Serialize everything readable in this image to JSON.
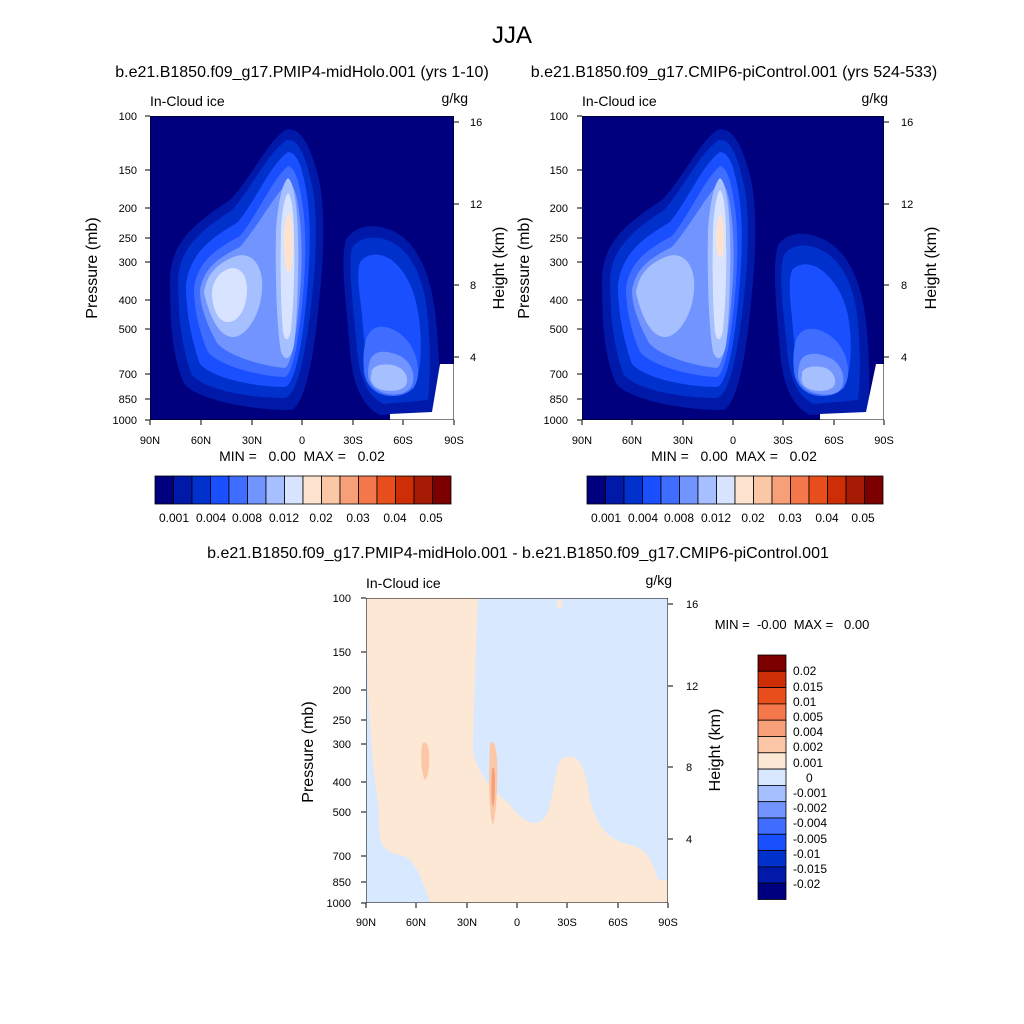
{
  "figure": {
    "title": "JJA",
    "colors": [
      "#00007e",
      "#0019a9",
      "#0031cc",
      "#1a4fff",
      "#3f6dff",
      "#7194ff",
      "#a5bfff",
      "#d8e4ff",
      "#fde3cf",
      "#fbc7a7",
      "#f79f78",
      "#f4784b",
      "#e94f1c",
      "#cc2f06",
      "#a51b05",
      "#7d0000"
    ],
    "diff_colors": [
      "#00007e",
      "#0019a9",
      "#0031cc",
      "#1a4fff",
      "#3f6dff",
      "#7194ff",
      "#a5bfff",
      "#d8e8ff",
      "#fde8d6",
      "#fbc7a7",
      "#f79f78",
      "#f4784b",
      "#e94f1c",
      "#cc2f06",
      "#7d0000"
    ]
  },
  "chart_data": [
    {
      "type": "heatmap",
      "title": "b.e21.B1850.f09_g17.PMIP4-midHolo.001 (yrs 1-10)",
      "left_label": "In-Cloud ice",
      "units": "g/kg",
      "ylabel": "Pressure (mb)",
      "y2label": "Height (km)",
      "x_ticks": [
        "90N",
        "60N",
        "30N",
        "0",
        "30S",
        "60S",
        "90S"
      ],
      "y_ticks": [
        "100",
        "150",
        "200",
        "250",
        "300",
        "400",
        "500",
        "700",
        "850",
        "1000"
      ],
      "y2_ticks": [
        "16",
        "12",
        "8",
        "4"
      ],
      "stats": "MIN =   0.00  MAX =   0.02",
      "colorbar_labels": [
        "0.001",
        "0.004",
        "0.008",
        "0.012",
        "0.02",
        "0.03",
        "0.04",
        "0.05"
      ]
    },
    {
      "type": "heatmap",
      "title": "b.e21.B1850.f09_g17.CMIP6-piControl.001 (yrs 524-533)",
      "left_label": "In-Cloud ice",
      "units": "g/kg",
      "ylabel": "Pressure (mb)",
      "y2label": "Height (km)",
      "x_ticks": [
        "90N",
        "60N",
        "30N",
        "0",
        "30S",
        "60S",
        "90S"
      ],
      "y_ticks": [
        "100",
        "150",
        "200",
        "250",
        "300",
        "400",
        "500",
        "700",
        "850",
        "1000"
      ],
      "y2_ticks": [
        "16",
        "12",
        "8",
        "4"
      ],
      "stats": "MIN =   0.00  MAX =   0.02",
      "colorbar_labels": [
        "0.001",
        "0.004",
        "0.008",
        "0.012",
        "0.02",
        "0.03",
        "0.04",
        "0.05"
      ]
    },
    {
      "type": "heatmap",
      "title": "b.e21.B1850.f09_g17.PMIP4-midHolo.001 - b.e21.B1850.f09_g17.CMIP6-piControl.001",
      "left_label": "In-Cloud ice",
      "units": "g/kg",
      "ylabel": "Pressure (mb)",
      "y2label": "Height (km)",
      "x_ticks": [
        "90N",
        "60N",
        "30N",
        "0",
        "30S",
        "60S",
        "90S"
      ],
      "y_ticks": [
        "100",
        "150",
        "200",
        "250",
        "300",
        "400",
        "500",
        "700",
        "850",
        "1000"
      ],
      "y2_ticks": [
        "16",
        "12",
        "8",
        "4"
      ],
      "stats": "MIN =  -0.00  MAX =   0.00",
      "colorbar_labels": [
        "0.02",
        "0.015",
        "0.01",
        "0.005",
        "0.004",
        "0.002",
        "0.001",
        "0",
        "-0.001",
        "-0.002",
        "-0.004",
        "-0.005",
        "-0.01",
        "-0.015",
        "-0.02"
      ]
    }
  ]
}
